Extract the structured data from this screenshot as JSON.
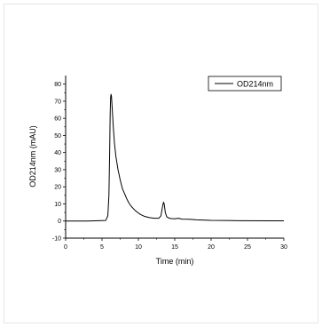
{
  "chart_data": {
    "type": "line",
    "title": "",
    "xlabel": "Time (min)",
    "ylabel": "OD214nm (mAU)",
    "xlim": [
      0,
      30
    ],
    "ylim": [
      -10,
      85
    ],
    "xticks": [
      0,
      5,
      10,
      15,
      20,
      25,
      30
    ],
    "yticks": [
      -10,
      0,
      10,
      20,
      30,
      40,
      50,
      60,
      70,
      80
    ],
    "grid": false,
    "legend_position": "top-right",
    "series": [
      {
        "name": "OD214nm",
        "color": "#000000",
        "x": [
          0,
          3,
          5.5,
          5.8,
          5.95,
          6.05,
          6.12,
          6.18,
          6.24,
          6.3,
          6.4,
          6.55,
          6.7,
          6.9,
          7.2,
          7.5,
          7.8,
          8.1,
          8.4,
          8.7,
          9.0,
          9.3,
          9.6,
          9.9,
          10.3,
          10.8,
          11.5,
          12.2,
          12.8,
          13.1,
          13.3,
          13.45,
          13.55,
          13.7,
          13.9,
          14.2,
          14.6,
          15.0,
          15.5,
          16.0,
          17.0,
          18.0,
          20.0,
          24.0,
          28.0,
          30.0
        ],
        "y": [
          0,
          0,
          0.3,
          3,
          15,
          40,
          62,
          72,
          74,
          73,
          66,
          55,
          46,
          38,
          30,
          24,
          19,
          16,
          13,
          10.5,
          8.7,
          7.3,
          6,
          5,
          3.8,
          2.8,
          2.0,
          1.6,
          1.6,
          3,
          8,
          11,
          10,
          5,
          2.5,
          1.7,
          1.4,
          1.3,
          1.6,
          1.1,
          1.0,
          0.7,
          0.4,
          0.2,
          0.1,
          0.1
        ]
      }
    ]
  }
}
